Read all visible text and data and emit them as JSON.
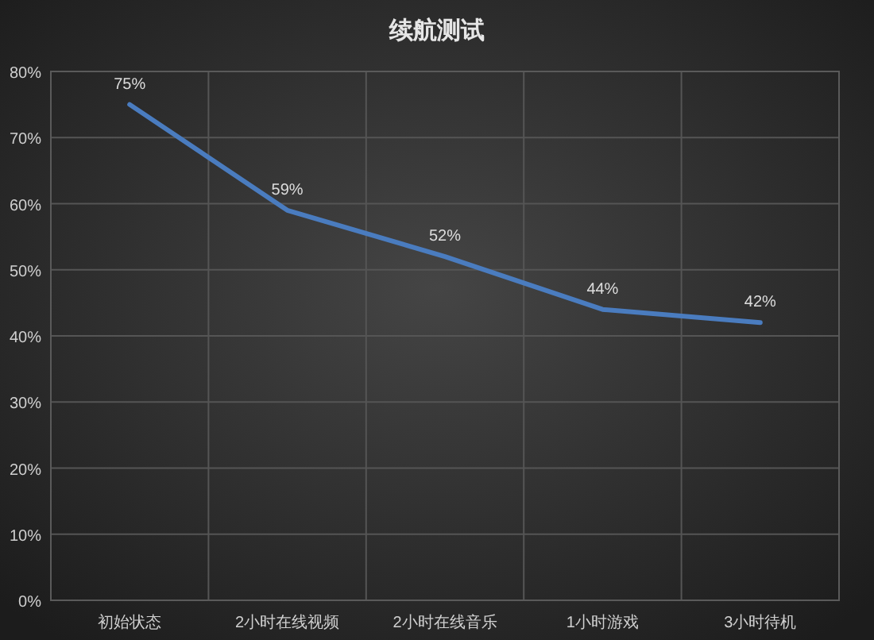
{
  "chart_data": {
    "type": "line",
    "title": "续航测试",
    "categories": [
      "初始状态",
      "2小时在线视频",
      "2小时在线音乐",
      "1小时游戏",
      "3小时待机"
    ],
    "series": [
      {
        "color": "#4a7cbf",
        "values": [
          75,
          59,
          52,
          44,
          42
        ],
        "value_labels": [
          "75%",
          "59%",
          "52%",
          "44%",
          "42%"
        ]
      }
    ],
    "ylim": [
      0,
      80
    ],
    "yticks": [
      {
        "value": 0,
        "label": "0%"
      },
      {
        "value": 10,
        "label": "10%"
      },
      {
        "value": 20,
        "label": "20%"
      },
      {
        "value": 30,
        "label": "30%"
      },
      {
        "value": 40,
        "label": "40%"
      },
      {
        "value": 50,
        "label": "50%"
      },
      {
        "value": 60,
        "label": "60%"
      },
      {
        "value": 70,
        "label": "70%"
      },
      {
        "value": 80,
        "label": "80%"
      }
    ],
    "grid": true,
    "marker": "none",
    "line_style": "solid"
  }
}
